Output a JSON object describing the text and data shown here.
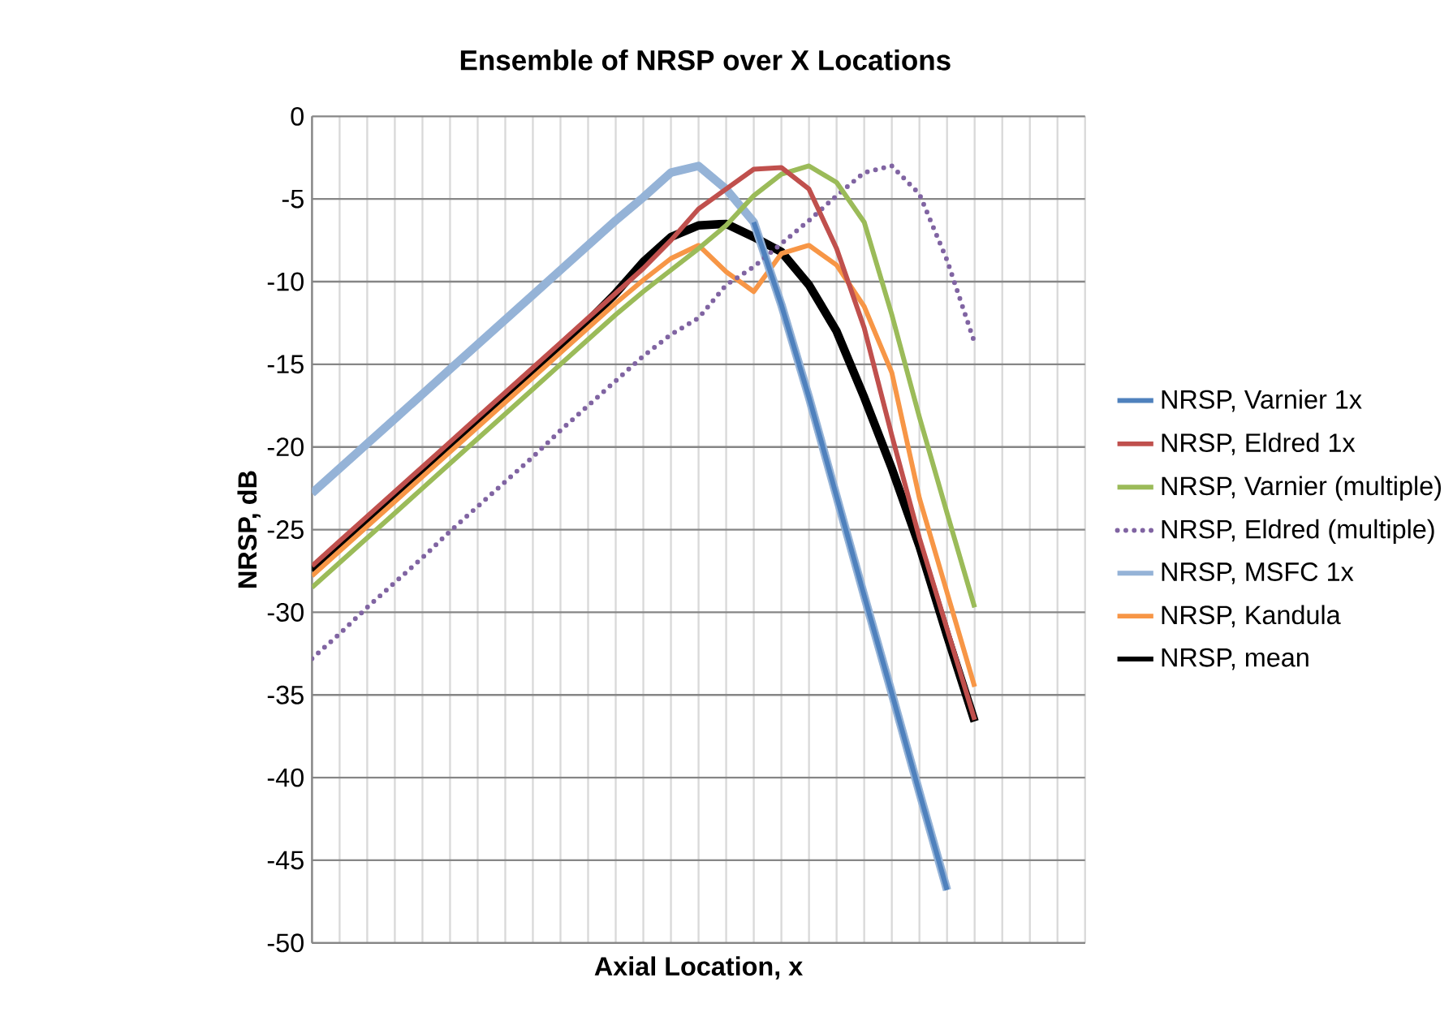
{
  "chart_data": {
    "type": "line",
    "title": "Ensemble of NRSP over X Locations",
    "xlabel": "Axial Location, x",
    "ylabel": "NRSP, dB",
    "categories": [
      null,
      null,
      null,
      null,
      null,
      null,
      null,
      null,
      null,
      null,
      null,
      null,
      null,
      null,
      null,
      null,
      null,
      null,
      null,
      null,
      null,
      null,
      null,
      null,
      null,
      null,
      null,
      null,
      null
    ],
    "ylim": [
      -50,
      0
    ],
    "yticks": [
      0,
      -5,
      -10,
      -15,
      -20,
      -25,
      -30,
      -35,
      -40,
      -45,
      -50
    ],
    "grid": true,
    "legend": "right",
    "tick_labels": "y",
    "series": [
      {
        "name": "NRSP, Varnier 1x",
        "color": "#4f81bd",
        "values": [
          null,
          null,
          null,
          null,
          null,
          null,
          null,
          null,
          null,
          null,
          null,
          null,
          null,
          null,
          null,
          null,
          -6.4,
          -11.4,
          -17.0,
          -23.0,
          -29.0,
          -34.9,
          -40.9,
          -46.8,
          null,
          null,
          null,
          null,
          null
        ]
      },
      {
        "name": "NRSP, Eldred 1x",
        "color": "#c0504d",
        "values": [
          -27.2,
          -25.7,
          -24.2,
          -22.7,
          -21.2,
          -19.7,
          -18.2,
          -16.7,
          -15.2,
          -13.7,
          -12.2,
          -10.7,
          -9.2,
          -7.5,
          -5.6,
          -4.4,
          -3.2,
          -3.1,
          -4.4,
          -8.0,
          -12.8,
          -19.3,
          -25.5,
          -31.0,
          -36.5,
          null,
          null,
          null,
          null
        ]
      },
      {
        "name": "NRSP, Varnier (multiple)",
        "color": "#9bbb59",
        "values": [
          -28.5,
          -27.0,
          -25.5,
          -24.0,
          -22.5,
          -21.0,
          -19.5,
          -18.0,
          -16.5,
          -15.0,
          -13.5,
          -12.0,
          -10.6,
          -9.3,
          -8.0,
          -6.6,
          -4.8,
          -3.5,
          -3.0,
          -4.0,
          -6.4,
          -12.0,
          -18.2,
          -24.0,
          -29.7,
          null,
          null,
          null,
          null
        ]
      },
      {
        "name": "NRSP, Eldred (multiple)",
        "color": "#8064a2",
        "line_style": "dotted",
        "values": [
          -32.8,
          -31.3,
          -29.7,
          -28.2,
          -26.7,
          -25.1,
          -23.6,
          -22.1,
          -20.6,
          -19.0,
          -17.5,
          -16.0,
          -14.5,
          -13.2,
          -12.2,
          -10.2,
          -9.1,
          -7.7,
          -6.3,
          -4.8,
          -3.4,
          -3.0,
          -4.7,
          -8.7,
          -13.7,
          null,
          null,
          null,
          null
        ]
      },
      {
        "name": "NRSP, MSFC 1x",
        "color": "#95b3d7",
        "values": [
          -22.8,
          -21.3,
          -19.8,
          -18.3,
          -16.8,
          -15.3,
          -13.8,
          -12.3,
          -10.8,
          -9.3,
          -7.8,
          -6.3,
          -4.9,
          -3.4,
          -3.0,
          -4.4,
          -6.4,
          -11.4,
          -17.0,
          -23.0,
          -29.0,
          -34.9,
          -40.9,
          -46.8,
          null,
          null,
          null,
          null,
          null
        ]
      },
      {
        "name": "NRSP, Kandula",
        "color": "#f79646",
        "values": [
          -27.8,
          -26.3,
          -24.8,
          -23.3,
          -21.8,
          -20.3,
          -18.8,
          -17.3,
          -15.8,
          -14.3,
          -12.8,
          -11.3,
          -9.9,
          -8.6,
          -7.8,
          -9.4,
          -10.6,
          -8.3,
          -7.8,
          -9.0,
          -11.5,
          -15.5,
          -23.1,
          -28.8,
          -34.5,
          null,
          null,
          null,
          null
        ]
      },
      {
        "name": "NRSP, mean",
        "color": "#000000",
        "values": [
          -27.5,
          -26.0,
          -24.5,
          -23.0,
          -21.5,
          -20.0,
          -18.5,
          -17.0,
          -15.5,
          -14.0,
          -12.4,
          -10.7,
          -8.8,
          -7.3,
          -6.6,
          -6.5,
          -7.3,
          -8.2,
          -10.2,
          -13.0,
          -17.0,
          -21.3,
          -26.0,
          -31.4,
          -36.6,
          null,
          null,
          null,
          null
        ]
      }
    ]
  }
}
